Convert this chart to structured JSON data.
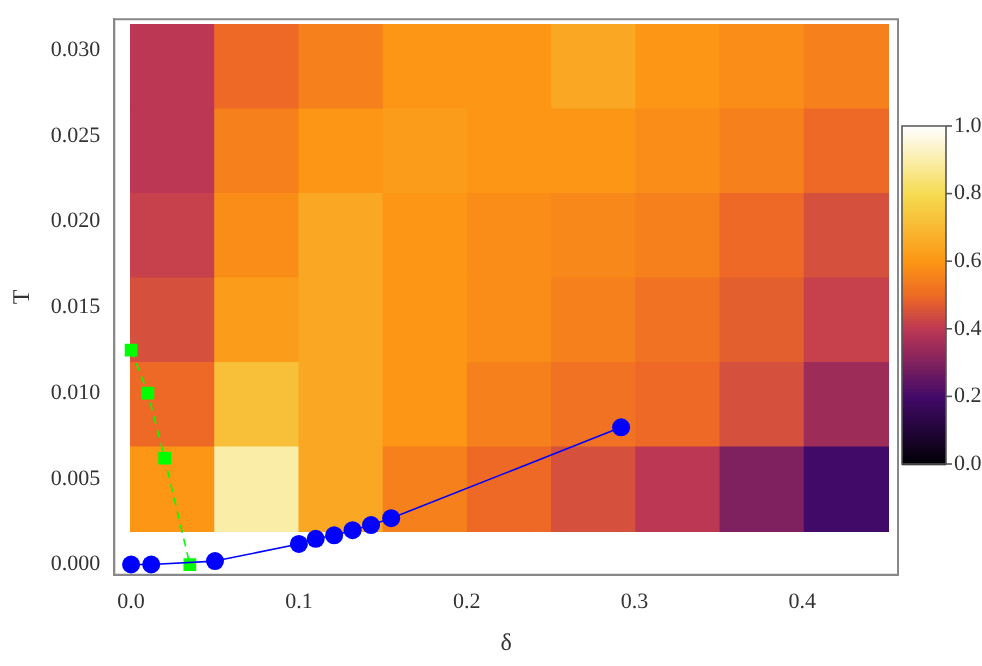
{
  "chart_data": [
    {
      "type": "heatmap",
      "clim": [
        0,
        1
      ],
      "cticks": [
        {
          "value": 0,
          "label": "0.0"
        },
        {
          "value": 0.2,
          "label": "0.2"
        },
        {
          "value": 0.4,
          "label": "0.4"
        },
        {
          "value": 0.6,
          "label": "0.6"
        },
        {
          "value": 0.8,
          "label": "0.8"
        },
        {
          "value": 1,
          "label": "1.0"
        }
      ],
      "categories": [
        null,
        null,
        null,
        null,
        null,
        null,
        null,
        null,
        null
      ],
      "y_categories": [
        null,
        null,
        null,
        null,
        null,
        null
      ],
      "cells": [
        [
          0.4,
          0.5,
          0.55,
          0.6,
          0.6,
          0.65,
          0.6,
          0.58,
          0.55
        ],
        [
          0.4,
          0.55,
          0.6,
          0.62,
          0.6,
          0.6,
          0.58,
          0.55,
          0.5
        ],
        [
          0.42,
          0.58,
          0.65,
          0.6,
          0.58,
          0.57,
          0.55,
          0.5,
          0.45
        ],
        [
          0.45,
          0.62,
          0.65,
          0.6,
          0.58,
          0.55,
          0.52,
          0.48,
          0.42
        ],
        [
          0.5,
          0.72,
          0.65,
          0.6,
          0.55,
          0.52,
          0.5,
          0.45,
          0.35
        ],
        [
          0.6,
          0.9,
          0.65,
          0.55,
          0.5,
          0.45,
          0.4,
          0.3,
          0.2
        ]
      ]
    },
    {
      "type": "line",
      "xlabel": "δ",
      "ylabel": "T",
      "xlim": [
        -0.01,
        0.457
      ],
      "ylim": [
        -0.0006,
        0.0318
      ],
      "xticks": [
        {
          "value": 0,
          "label": "0.0"
        },
        {
          "value": 0.1,
          "label": "0.1"
        },
        {
          "value": 0.2,
          "label": "0.2"
        },
        {
          "value": 0.3,
          "label": "0.3"
        },
        {
          "value": 0.4,
          "label": "0.4"
        }
      ],
      "yticks": [
        {
          "value": 0,
          "label": "0.000"
        },
        {
          "value": 0.005,
          "label": "0.005"
        },
        {
          "value": 0.01,
          "label": "0.010"
        },
        {
          "value": 0.015,
          "label": "0.015"
        },
        {
          "value": 0.02,
          "label": "0.020"
        },
        {
          "value": 0.025,
          "label": "0.025"
        },
        {
          "value": 0.03,
          "label": "0.030"
        }
      ],
      "grid": false,
      "legend": false,
      "series": [
        {
          "type": "line",
          "color": "#0000ff",
          "marker": "circle",
          "line_style": "solid",
          "x": [
            0,
            0.012,
            0.05,
            0.1,
            0.11,
            0.121,
            0.132,
            0.143,
            0.155,
            0.292
          ],
          "values": [
            0,
            0,
            0.0002,
            0.0012,
            0.0015,
            0.0017,
            0.002,
            0.0023,
            0.0027,
            0.008
          ]
        },
        {
          "type": "line",
          "color": "#00ff00",
          "marker": "square",
          "line_style": "dashed",
          "x": [
            0,
            0.01,
            0.02,
            0.035
          ],
          "values": [
            0.0125,
            0.01,
            0.0062,
            0
          ]
        }
      ]
    }
  ]
}
